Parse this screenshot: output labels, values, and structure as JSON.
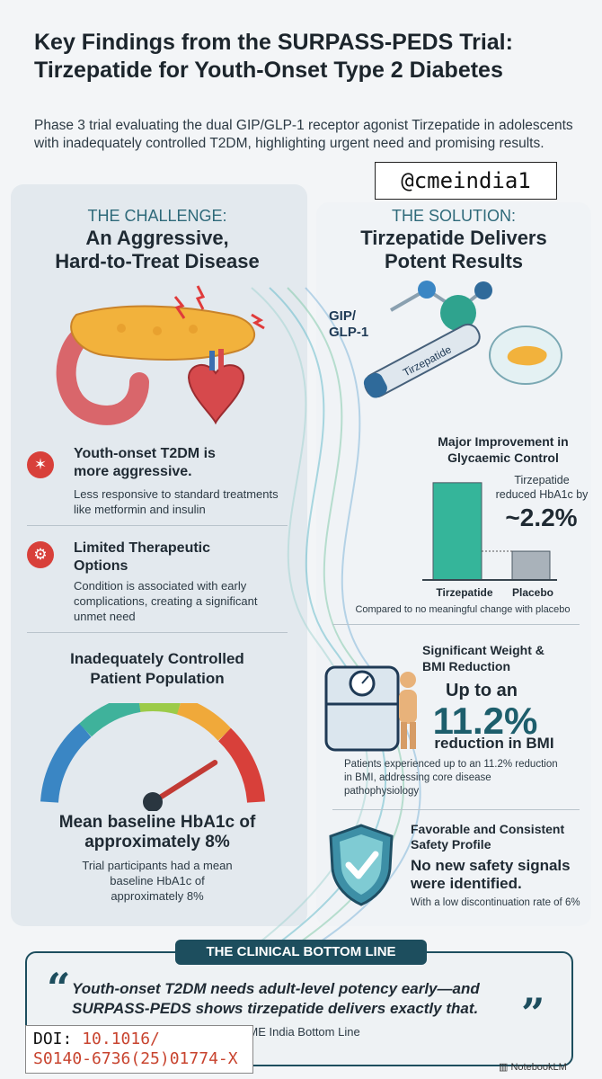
{
  "header": {
    "title_line1": "Key Findings from the SURPASS-PEDS Trial:",
    "title_line2": "Tirzepatide for Youth-Onset Type 2 Diabetes",
    "subtitle": "Phase 3 trial evaluating the dual GIP/GLP-1 receptor agonist Tirzepatide in adolescents with inadequately controlled T2DM, highlighting urgent need and promising results.",
    "handle": "@cmeindia1"
  },
  "challenge": {
    "kicker": "THE CHALLENGE:",
    "heading_line1": "An Aggressive,",
    "heading_line2": "Hard-to-Treat Disease",
    "items": [
      {
        "icon": "dna-virus-icon",
        "title_line1": "Youth-onset T2DM is",
        "title_line2": "more aggressive.",
        "desc_line1": "Less responsive to standard treatments",
        "desc_line2": "like metformin and insulin"
      },
      {
        "icon": "gear-alert-icon",
        "title_line1": "Limited Therapeutic",
        "title_line2": "Options",
        "desc_line1": "Condition is associated with early",
        "desc_line2": "complications, creating a significant",
        "desc_line3": "unmet need"
      }
    ],
    "population_line1": "Inadequately Controlled",
    "population_line2": "Patient Population",
    "gauge_level": 0.82,
    "baseline_line1": "Mean baseline HbA1c of",
    "baseline_line2": "approximately 8%",
    "baseline_desc_line1": "Trial participants had a mean",
    "baseline_desc_line2": "baseline HbA1c of",
    "baseline_desc_line3": "approximately 8%"
  },
  "solution": {
    "kicker": "THE SOLUTION:",
    "heading_line1": "Tirzepatide Delivers",
    "heading_line2": "Potent Results",
    "molecule_label_line1": "GIP/",
    "molecule_label_line2": "GLP-1",
    "pen_label": "Tirzepatide",
    "glycaemic_title_line1": "Major Improvement in",
    "glycaemic_title_line2": "Glycaemic Control",
    "reduced_line1": "Tirzepatide",
    "reduced_line2": "reduced HbA1c by",
    "reduced_value": "~2.2%",
    "glycaemic_footnote": "Compared to no meaningful change with placebo",
    "weight_title_line1": "Significant Weight &",
    "weight_title_line2": "BMI Reduction",
    "weight_upto": "Up to an",
    "weight_value": "11.2%",
    "weight_reduction": "reduction in BMI",
    "weight_desc_line1": "Patients experienced up to an 11.2% reduction",
    "weight_desc_line2": "in BMI, addressing core disease",
    "weight_desc_line3": "pathophysiology",
    "safety_title_line1": "Favorable and Consistent",
    "safety_title_line2": "Safety Profile",
    "safety_bold_line1": "No new safety signals",
    "safety_bold_line2": "were identified.",
    "safety_desc": "With a low discontinuation rate of 6%"
  },
  "chart_data": {
    "type": "bar",
    "categories": [
      "Tirzepatide",
      "Placebo"
    ],
    "values": [
      2.2,
      0.65
    ],
    "colors": [
      "#35b59a",
      "#a9b2ba"
    ],
    "title": "Major Improvement in Glycaemic Control",
    "xlabel": "",
    "ylabel": "",
    "ylim": [
      0,
      2.4
    ],
    "grid": false
  },
  "bottom": {
    "banner": "THE CLINICAL BOTTOM LINE",
    "quote_line1": "Youth-onset T2DM needs adult-level potency early—and",
    "quote_line2": "SURPASS-PEDS shows tirzepatide delivers exactly that.",
    "attribution": "CME India Bottom Line",
    "doi_label": "DOI:",
    "doi_value_line1": "10.1016/",
    "doi_value_line2": "S0140-6736(25)01774-X",
    "brand": "NotebookLM"
  },
  "colors": {
    "accent_teal": "#1d4e5e",
    "alert_red": "#d8403a",
    "bar_green": "#35b59a",
    "placebo_grey": "#a9b2ba"
  }
}
